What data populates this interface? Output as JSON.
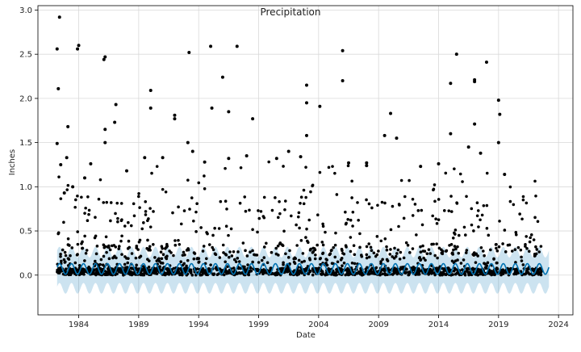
{
  "chart_data": {
    "type": "scatter",
    "title": "Precipitation",
    "xlabel": "Date",
    "ylabel": "Inches",
    "xlim": [
      1980.6,
      2025.2
    ],
    "ylim": [
      -0.45,
      3.05
    ],
    "x_ticks": [
      1984,
      1989,
      1994,
      1999,
      2004,
      2009,
      2014,
      2019,
      2024
    ],
    "y_ticks": [
      0.0,
      0.5,
      1.0,
      1.5,
      2.0,
      2.5,
      3.0
    ],
    "y_tick_labels": [
      "0.0",
      "0.5",
      "1.0",
      "1.5",
      "2.0",
      "2.5",
      "3.0"
    ],
    "grid": true,
    "colors": {
      "points": "#000000",
      "forecast_line": "#0072B2",
      "uncertainty_band": "#0072B2"
    },
    "forecast": {
      "x_start": 1982.2,
      "x_end": 2023.2,
      "mean_amplitude": 0.06,
      "mean_base": 0.07,
      "band_lower_base": -0.15,
      "band_upper_base": 0.26,
      "band_amplitude": 0.06,
      "band_opacity": 0.2
    },
    "series": [
      {
        "values": [
          {
            "x": 1982.2,
            "y": 2.56
          },
          {
            "x": 1982.4,
            "y": 2.92
          },
          {
            "x": 1982.3,
            "y": 2.11
          },
          {
            "x": 1982.2,
            "y": 1.49
          },
          {
            "x": 1982.5,
            "y": 1.25
          },
          {
            "x": 1983.1,
            "y": 1.68
          },
          {
            "x": 1983.0,
            "y": 1.33
          },
          {
            "x": 1983.9,
            "y": 2.56
          },
          {
            "x": 1984.0,
            "y": 2.6
          },
          {
            "x": 1986.1,
            "y": 2.44
          },
          {
            "x": 1986.2,
            "y": 2.47
          },
          {
            "x": 1986.2,
            "y": 1.65
          },
          {
            "x": 1986.2,
            "y": 1.5
          },
          {
            "x": 1987.1,
            "y": 1.93
          },
          {
            "x": 1987.0,
            "y": 1.73
          },
          {
            "x": 1990.0,
            "y": 2.09
          },
          {
            "x": 1990.0,
            "y": 1.89
          },
          {
            "x": 1992.0,
            "y": 1.81
          },
          {
            "x": 1992.0,
            "y": 1.77
          },
          {
            "x": 1993.2,
            "y": 2.52
          },
          {
            "x": 1993.1,
            "y": 1.5
          },
          {
            "x": 1995.0,
            "y": 2.59
          },
          {
            "x": 1995.1,
            "y": 1.89
          },
          {
            "x": 1996.0,
            "y": 2.24
          },
          {
            "x": 1996.5,
            "y": 1.85
          },
          {
            "x": 1997.2,
            "y": 2.59
          },
          {
            "x": 1998.5,
            "y": 1.77
          },
          {
            "x": 2003.0,
            "y": 2.15
          },
          {
            "x": 2003.0,
            "y": 1.95
          },
          {
            "x": 2004.1,
            "y": 1.91
          },
          {
            "x": 2003.0,
            "y": 1.58
          },
          {
            "x": 2006.0,
            "y": 2.54
          },
          {
            "x": 2006.0,
            "y": 2.2
          },
          {
            "x": 2010.0,
            "y": 1.83
          },
          {
            "x": 2009.5,
            "y": 1.58
          },
          {
            "x": 2010.5,
            "y": 1.55
          },
          {
            "x": 2015.5,
            "y": 2.5
          },
          {
            "x": 2015.0,
            "y": 2.17
          },
          {
            "x": 2015.0,
            "y": 1.6
          },
          {
            "x": 2017.0,
            "y": 2.21
          },
          {
            "x": 2017.0,
            "y": 2.19
          },
          {
            "x": 2017.0,
            "y": 1.71
          },
          {
            "x": 2018.0,
            "y": 2.41
          },
          {
            "x": 2019.0,
            "y": 1.98
          },
          {
            "x": 2019.1,
            "y": 1.82
          },
          {
            "x": 2019.0,
            "y": 1.5
          },
          {
            "x": 2016.5,
            "y": 1.45
          },
          {
            "x": 2017.5,
            "y": 1.38
          },
          {
            "x": 2019.5,
            "y": 1.14
          },
          {
            "x": 2014.0,
            "y": 1.26
          },
          {
            "x": 2012.5,
            "y": 1.23
          },
          {
            "x": 2008.0,
            "y": 1.27
          },
          {
            "x": 2008.0,
            "y": 1.24
          },
          {
            "x": 2006.5,
            "y": 1.27
          },
          {
            "x": 2002.5,
            "y": 1.34
          },
          {
            "x": 2001.5,
            "y": 1.4
          },
          {
            "x": 2000.5,
            "y": 1.32
          },
          {
            "x": 1998.0,
            "y": 1.35
          },
          {
            "x": 1996.5,
            "y": 1.32
          },
          {
            "x": 1994.5,
            "y": 1.28
          },
          {
            "x": 1993.5,
            "y": 1.4
          },
          {
            "x": 1991.0,
            "y": 1.33
          },
          {
            "x": 1989.5,
            "y": 1.33
          },
          {
            "x": 1988.0,
            "y": 1.18
          },
          {
            "x": 1985.0,
            "y": 1.26
          },
          {
            "x": 1984.5,
            "y": 1.1
          },
          {
            "x": 1983.5,
            "y": 1.0
          },
          {
            "x": 1982.8,
            "y": 0.93
          }
        ],
        "dense_note_in_chart": ""
      }
    ]
  }
}
